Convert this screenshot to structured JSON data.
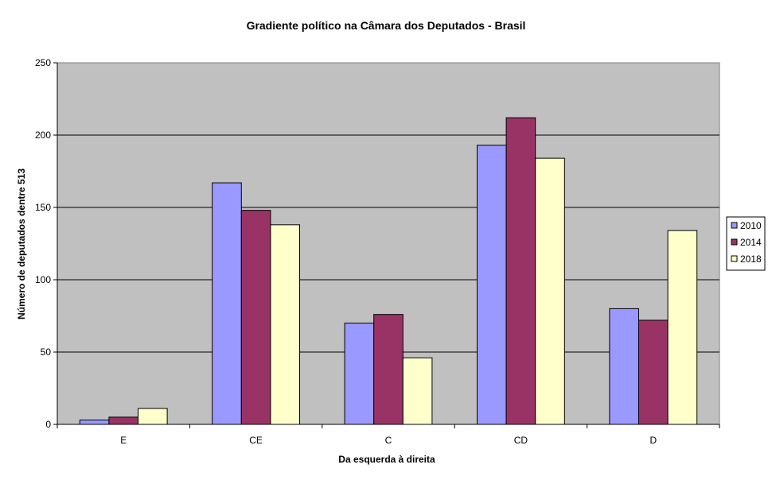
{
  "chart_data": {
    "type": "bar",
    "title": "Gradiente político na Câmara dos Deputados - Brasil",
    "xlabel": "Da esquerda à direita",
    "ylabel": "Número de deputados dentre 513",
    "categories": [
      "E",
      "CE",
      "C",
      "CD",
      "D"
    ],
    "ylim": [
      0,
      250
    ],
    "yticks": [
      0,
      50,
      100,
      150,
      200,
      250
    ],
    "grid": true,
    "legend_position": "right",
    "plot_background": "#C0C0C0",
    "series": [
      {
        "name": "2010",
        "color": "#9999FF",
        "values": [
          3,
          167,
          70,
          193,
          80
        ]
      },
      {
        "name": "2014",
        "color": "#993366",
        "values": [
          5,
          148,
          76,
          212,
          72
        ]
      },
      {
        "name": "2018",
        "color": "#FFFFCC",
        "values": [
          11,
          138,
          46,
          184,
          134
        ]
      }
    ]
  }
}
